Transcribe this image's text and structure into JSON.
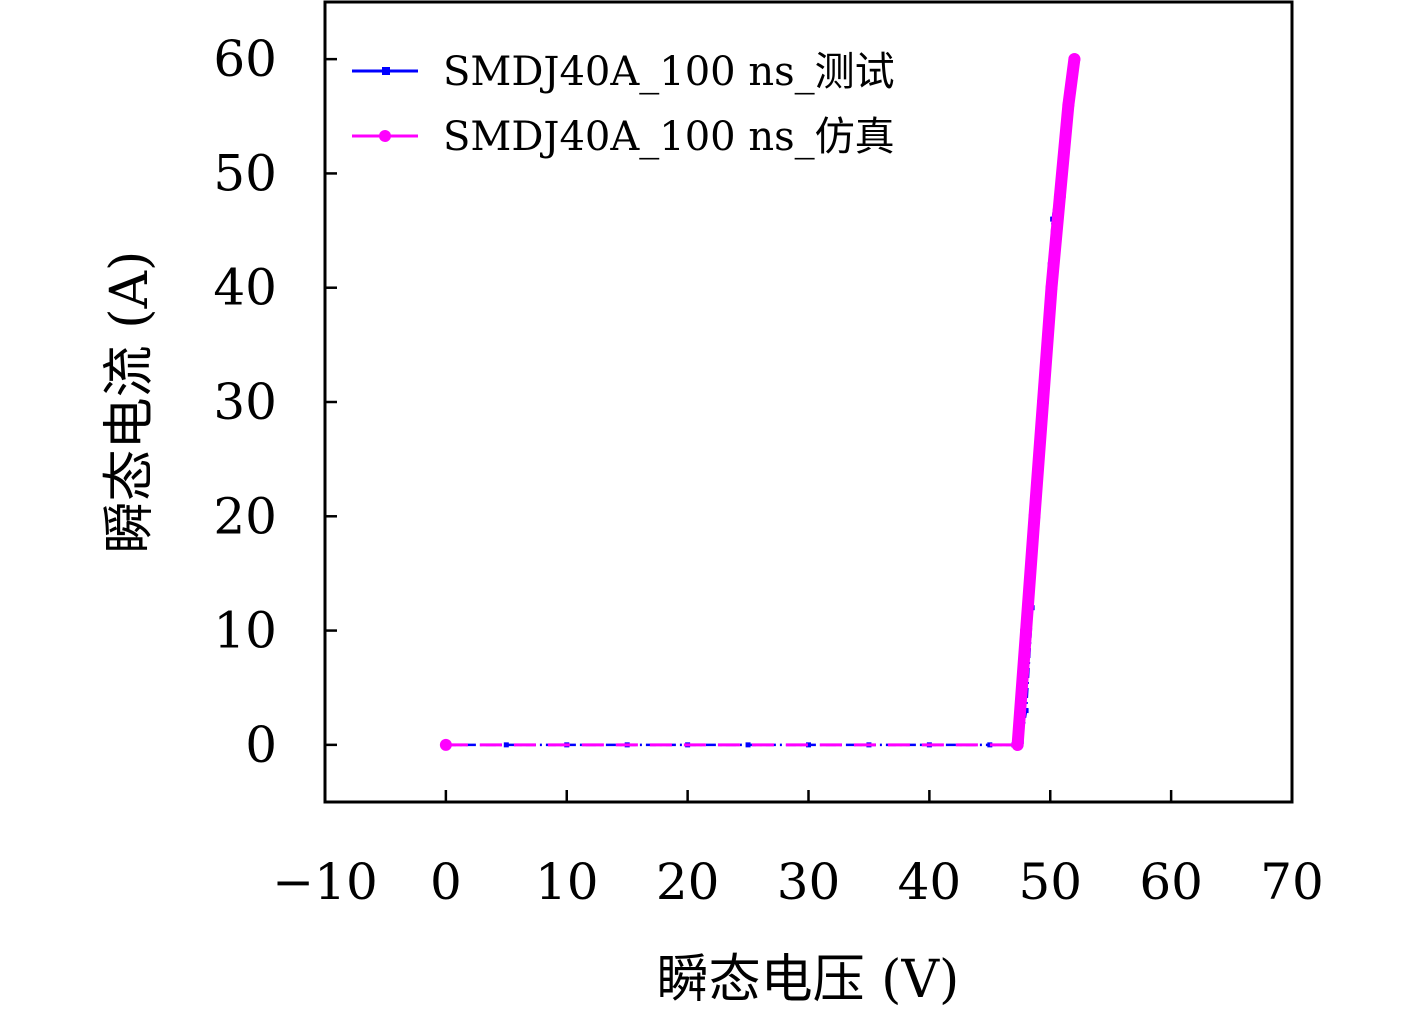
{
  "chart_data": {
    "type": "line",
    "title": "",
    "xlabel": "瞬态电压 (V)",
    "ylabel": "瞬态电流 (A)",
    "xlim": [
      -10,
      70
    ],
    "ylim": [
      -5,
      65
    ],
    "xticks": [
      -10,
      0,
      10,
      20,
      30,
      40,
      50,
      60,
      70
    ],
    "yticks": [
      0,
      10,
      20,
      30,
      40,
      50,
      60
    ],
    "xtick_labels": [
      "−10",
      "0",
      "10",
      "20",
      "30",
      "40",
      "50",
      "60",
      "70"
    ],
    "ytick_labels": [
      "0",
      "10",
      "20",
      "30",
      "40",
      "50",
      "60"
    ],
    "grid": false,
    "legend_position": "top-left",
    "series": [
      {
        "name": "SMDJ40A_100 ns_测试",
        "color": "#0000ff",
        "marker": "square",
        "line_style": "dash-dot",
        "x": [
          0,
          5,
          10,
          15,
          20,
          25,
          30,
          35,
          40,
          45,
          47,
          47.6,
          48,
          48.5,
          49,
          49.5,
          50,
          50.2,
          51,
          52
        ],
        "y": [
          0,
          0,
          0,
          0,
          0,
          0,
          0,
          0,
          0,
          0,
          0,
          0.3,
          3,
          12,
          22,
          32,
          42,
          46,
          52,
          60
        ]
      },
      {
        "name": "SMDJ40A_100 ns_仿真",
        "color": "#ff00ff",
        "marker": "circle",
        "line_style": "dashed",
        "x": [
          0,
          47.3,
          48.0,
          48.7,
          49.4,
          50.1,
          50.8,
          51.5,
          52.0
        ],
        "y": [
          0,
          0,
          10,
          20,
          30,
          40,
          48,
          56,
          60
        ]
      }
    ]
  }
}
